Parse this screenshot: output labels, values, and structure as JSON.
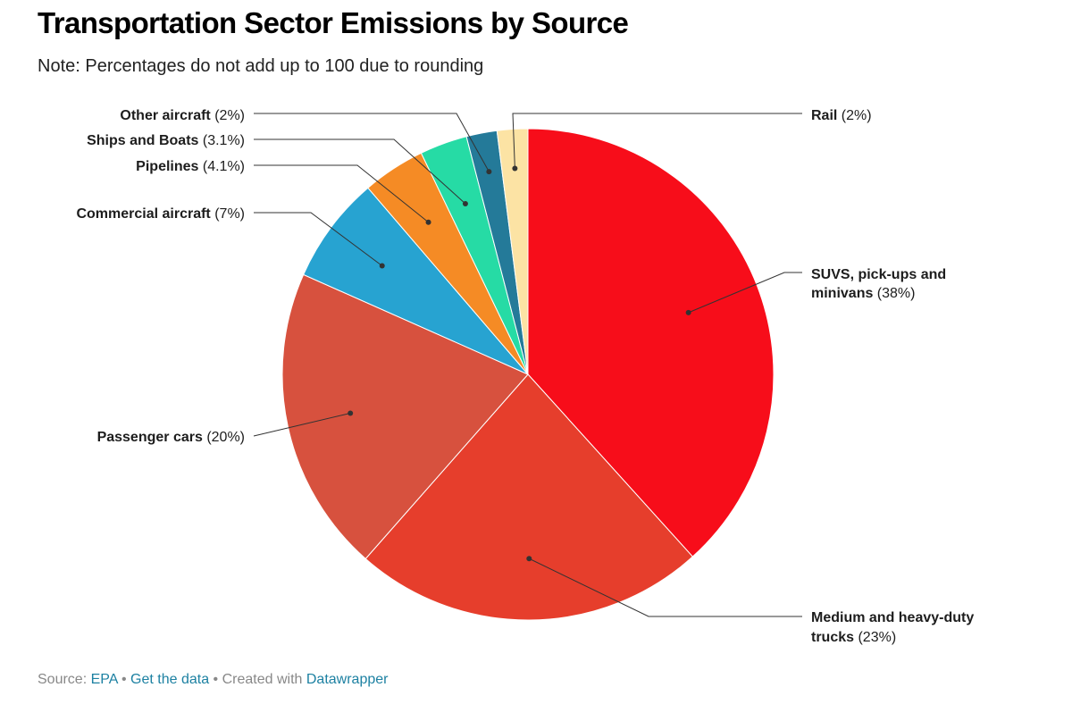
{
  "title": "Transportation Sector Emissions by Source",
  "subtitle": "Note: Percentages do not add up to 100 due to rounding",
  "chart_data": {
    "type": "pie",
    "unit": "%",
    "slices": [
      {
        "label": "SUVS, pick-ups and minivans",
        "value": 38,
        "value_label": "(38%)",
        "color": "#f70d1a"
      },
      {
        "label": "Medium and heavy-duty trucks",
        "value": 23,
        "value_label": "(23%)",
        "color": "#e63e2c"
      },
      {
        "label": "Passenger cars",
        "value": 20,
        "value_label": "(20%)",
        "color": "#d7513e"
      },
      {
        "label": "Commercial aircraft",
        "value": 7,
        "value_label": "(7%)",
        "color": "#27a3d1"
      },
      {
        "label": "Pipelines",
        "value": 4.1,
        "value_label": "(4.1%)",
        "color": "#f58b25"
      },
      {
        "label": "Ships and Boats",
        "value": 3.1,
        "value_label": "(3.1%)",
        "color": "#26dba5"
      },
      {
        "label": "Other aircraft",
        "value": 2,
        "value_label": "(2%)",
        "color": "#247a99"
      },
      {
        "label": "Rail",
        "value": 2,
        "value_label": "(2%)",
        "color": "#fce3a4"
      }
    ]
  },
  "footer": {
    "source_prefix": "Source: ",
    "source_link": "EPA",
    "separator": " • ",
    "data_link": "Get the data",
    "created_text": "Created with ",
    "created_link": "Datawrapper"
  }
}
